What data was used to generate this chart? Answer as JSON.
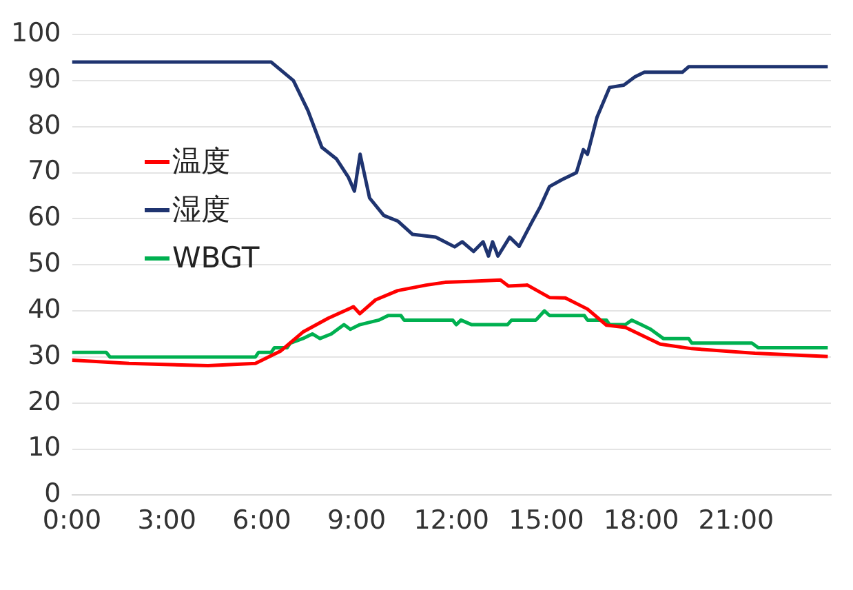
{
  "chart_data": {
    "type": "line",
    "xlim": [
      0,
      24
    ],
    "xticks": [
      {
        "value": 0,
        "label": "0:00"
      },
      {
        "value": 3,
        "label": "3:00"
      },
      {
        "value": 6,
        "label": "6:00"
      },
      {
        "value": 9,
        "label": "9:00"
      },
      {
        "value": 12,
        "label": "12:00"
      },
      {
        "value": 15,
        "label": "15:00"
      },
      {
        "value": 18,
        "label": "18:00"
      },
      {
        "value": 21,
        "label": "21:00"
      }
    ],
    "ylim": [
      0,
      100
    ],
    "yticks": [
      0,
      10,
      20,
      30,
      40,
      50,
      60,
      70,
      80,
      90,
      100
    ],
    "grid": "y",
    "legend": "left",
    "marker": "none",
    "line_style": "solid",
    "series": [
      {
        "name": "温度",
        "color": "#ff0000",
        "x": [
          0,
          1.8,
          4.3,
          5.8,
          6.6,
          7.3,
          8.1,
          8.9,
          9.1,
          9.6,
          10.3,
          11.2,
          11.8,
          12.6,
          13.55,
          13.8,
          14.4,
          15.1,
          15.6,
          16.3,
          16.9,
          17.5,
          18.6,
          19.6,
          21.6,
          23.9
        ],
        "values": [
          29.3,
          28.6,
          28.1,
          28.6,
          31.3,
          35.4,
          38.4,
          40.9,
          39.4,
          42.4,
          44.4,
          45.6,
          46.2,
          46.4,
          46.7,
          45.4,
          45.6,
          42.9,
          42.8,
          40.4,
          36.9,
          36.4,
          32.8,
          31.8,
          30.8,
          30.1
        ]
      },
      {
        "name": "湿度",
        "color": "#1f3470",
        "x": [
          0,
          6.3,
          7.0,
          7.46,
          7.9,
          8.36,
          8.74,
          8.93,
          9.11,
          9.41,
          9.86,
          10.3,
          10.77,
          11.5,
          12.1,
          12.34,
          12.7,
          13.0,
          13.17,
          13.3,
          13.47,
          13.84,
          14.14,
          14.52,
          14.8,
          15.1,
          15.5,
          15.95,
          16.17,
          16.3,
          16.6,
          17.0,
          17.45,
          17.8,
          18.1,
          19.3,
          19.5,
          23.9
        ],
        "values": [
          94,
          94,
          90,
          83.5,
          75.5,
          73,
          69,
          66,
          74,
          64.5,
          60.7,
          59.5,
          56.6,
          56,
          53.9,
          55,
          52.9,
          55,
          51.9,
          55,
          51.9,
          56,
          54,
          59,
          62.5,
          67,
          68.5,
          70,
          75,
          74,
          82,
          88.5,
          89,
          90.8,
          91.8,
          91.8,
          93,
          93
        ]
      },
      {
        "name": "WBGT",
        "color": "#00b050",
        "x": [
          0,
          1.08,
          1.2,
          5.8,
          5.9,
          6.3,
          6.4,
          6.8,
          6.9,
          7.3,
          7.6,
          7.84,
          8.2,
          8.6,
          8.8,
          9.1,
          9.7,
          10.0,
          10.4,
          10.5,
          12.04,
          12.15,
          12.3,
          12.64,
          13.77,
          13.9,
          14.67,
          14.94,
          15.1,
          16.2,
          16.3,
          16.9,
          17.0,
          17.5,
          17.7,
          18.0,
          18.3,
          18.5,
          18.7,
          19.5,
          19.6,
          21.5,
          21.7,
          23.9
        ],
        "values": [
          31,
          31,
          30,
          30,
          31,
          31,
          32,
          32,
          33,
          34,
          35,
          34,
          35,
          37,
          36,
          37,
          38,
          39,
          39,
          38,
          38,
          37,
          38,
          37,
          37,
          38,
          38,
          40,
          39,
          39,
          38,
          38,
          37,
          37,
          38,
          37,
          36,
          35,
          34,
          34,
          33,
          33,
          32,
          32
        ]
      }
    ]
  }
}
